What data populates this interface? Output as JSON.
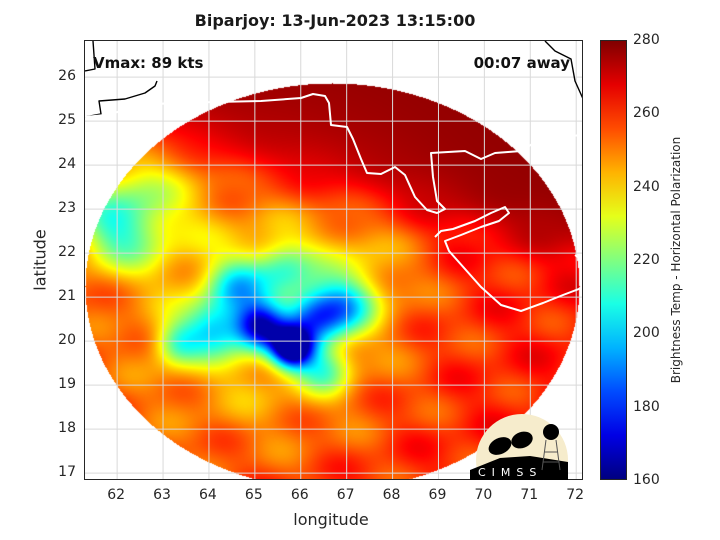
{
  "chart_data": {
    "type": "heatmap",
    "title": "Biparjoy: 13-Jun-2023 13:15:00",
    "xlabel": "longitude",
    "ylabel": "latitude",
    "xlim": [
      61.3,
      72.17
    ],
    "ylim": [
      16.82,
      26.82
    ],
    "xticks": [
      "62",
      "63",
      "64",
      "65",
      "66",
      "67",
      "68",
      "69",
      "70",
      "71",
      "72"
    ],
    "yticks": [
      "17",
      "18",
      "19",
      "20",
      "21",
      "22",
      "23",
      "24",
      "25",
      "26"
    ],
    "grid": true,
    "annotations": {
      "vmax": "Vmax: 89 kts",
      "time_offset": "00:07 away"
    },
    "colorbar": {
      "label": "Brightness Temp - Horizontal Polarization",
      "range": [
        160,
        280
      ],
      "ticks": [
        "160",
        "180",
        "200",
        "220",
        "240",
        "260",
        "280"
      ],
      "colormap": "jet"
    },
    "field": {
      "background_temp": 262,
      "land_temp": 278,
      "storm_center": [
        65.9,
        19.9
      ],
      "min_temp": 165,
      "features": [
        [
          65.8,
          19.85,
          -95,
          0.32
        ],
        [
          65.1,
          20.35,
          -68,
          0.38
        ],
        [
          66.3,
          20.55,
          -52,
          0.45
        ],
        [
          64.1,
          20.3,
          -40,
          0.45
        ],
        [
          63.3,
          19.95,
          -30,
          0.35
        ],
        [
          64.6,
          21.25,
          -36,
          0.45
        ],
        [
          65.6,
          21.65,
          -28,
          0.45
        ],
        [
          67.0,
          20.8,
          -34,
          0.45
        ],
        [
          66.5,
          19.35,
          -30,
          0.4
        ],
        [
          65.0,
          20.6,
          -22,
          2.3
        ],
        [
          62.0,
          22.6,
          -38,
          0.7
        ],
        [
          62.6,
          23.6,
          -18,
          1.0
        ],
        [
          67.2,
          21.6,
          -12,
          0.8
        ]
      ]
    }
  },
  "logo": {
    "text": "CIMSS"
  }
}
